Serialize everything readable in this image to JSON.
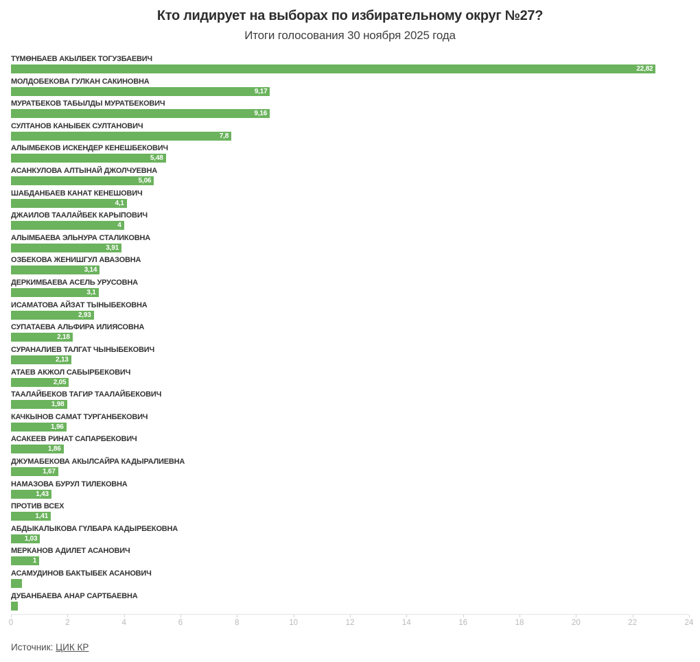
{
  "header": {
    "title": "Кто лидирует на выборах по избирательному округ №27?",
    "subtitle": "Итоги голосования 30 ноября 2025 года"
  },
  "chart_data": {
    "type": "bar",
    "orientation": "horizontal",
    "title": "Кто лидирует на выборах по избирательному округ №27?",
    "subtitle": "Итоги голосования 30 ноября 2025 года",
    "bar_color": "#6bb35d",
    "value_label_color": "#ffffff",
    "xlim": [
      0,
      24
    ],
    "x_ticks": [
      0,
      2,
      4,
      6,
      8,
      10,
      12,
      14,
      16,
      18,
      20,
      22,
      24
    ],
    "grid": false,
    "categories": [
      "ТҮМӨНБАЕВ АКЫЛБЕК ТОГУЗБАЕВИЧ",
      "МОЛДОБЕКОВА ГУЛКАН САКИНОВНА",
      "МУРАТБЕКОВ ТАБЫЛДЫ МУРАТБЕКОВИЧ",
      "СУЛТАНОВ КАНЫБЕК СУЛТАНОВИЧ",
      "АЛЫМБЕКОВ ИСКЕНДЕР КЕНЕШБЕКОВИЧ",
      "АСАНКУЛОВА АЛТЫНАЙ ДЖОЛЧУЕВНА",
      "ШАБДАНБАЕВ КАНАТ КЕНЕШОВИЧ",
      "ДЖАИЛОВ ТААЛАЙБЕК КАРЫПОВИЧ",
      "АЛЫМБАЕВА ЭЛЬНУРА СТАЛИКОВНА",
      "ОЗБЕКОВА ЖЕНИШГУЛ АВАЗОВНА",
      "ДЕРКИМБАЕВА АСЕЛЬ УРУСОВНА",
      "ИСАМАТОВА АЙЗАТ ТЫНЫБЕКОВНА",
      "СУПАТАЕВА АЛЬФИРА ИЛИЯСОВНА",
      "СУРАНАЛИЕВ ТАЛГАТ ЧЫНЫБЕКОВИЧ",
      "АТАЕВ АКЖОЛ САБЫРБЕКОВИЧ",
      "ТААЛАЙБЕКОВ ТАГИР ТААЛАЙБЕКОВИЧ",
      "КАЧКЫНОВ САМАТ ТУРГАНБЕКОВИЧ",
      "АСАКЕЕВ РИНАТ САПАРБЕКОВИЧ",
      "ДЖУМАБЕКОВА АКЫЛСАЙРА КАДЫРАЛИЕВНА",
      "НАМАЗОВА БУРУЛ ТИЛЕКОВНА",
      "ПРОТИВ ВСЕХ",
      "АБДЫКАЛЫКОВА ГҮЛБАРА КАДЫРБЕКОВНА",
      "МЕРКАНОВ АДИЛЕТ АСАНОВИЧ",
      "АСАМУДИНОВ БАКТЫБЕК АСАНОВИЧ",
      "ДУБАНБАЕВА АНАР САРТБАЕВНА"
    ],
    "values": [
      22.82,
      9.17,
      9.16,
      7.8,
      5.48,
      5.06,
      4.1,
      4,
      3.91,
      3.14,
      3.1,
      2.93,
      2.18,
      2.13,
      2.05,
      1.98,
      1.96,
      1.86,
      1.67,
      1.43,
      1.41,
      1.03,
      1,
      0.4,
      0.24
    ],
    "value_labels": [
      "22,82",
      "9,17",
      "9,16",
      "7,8",
      "5,48",
      "5,06",
      "4,1",
      "4",
      "3,91",
      "3,14",
      "3,1",
      "2,93",
      "2,18",
      "2,13",
      "2,05",
      "1,98",
      "1,96",
      "1,86",
      "1,67",
      "1,43",
      "1,41",
      "1,03",
      "1",
      "",
      ""
    ]
  },
  "footer": {
    "source_label": "Источник:",
    "source_link": "ЦИК КР"
  }
}
